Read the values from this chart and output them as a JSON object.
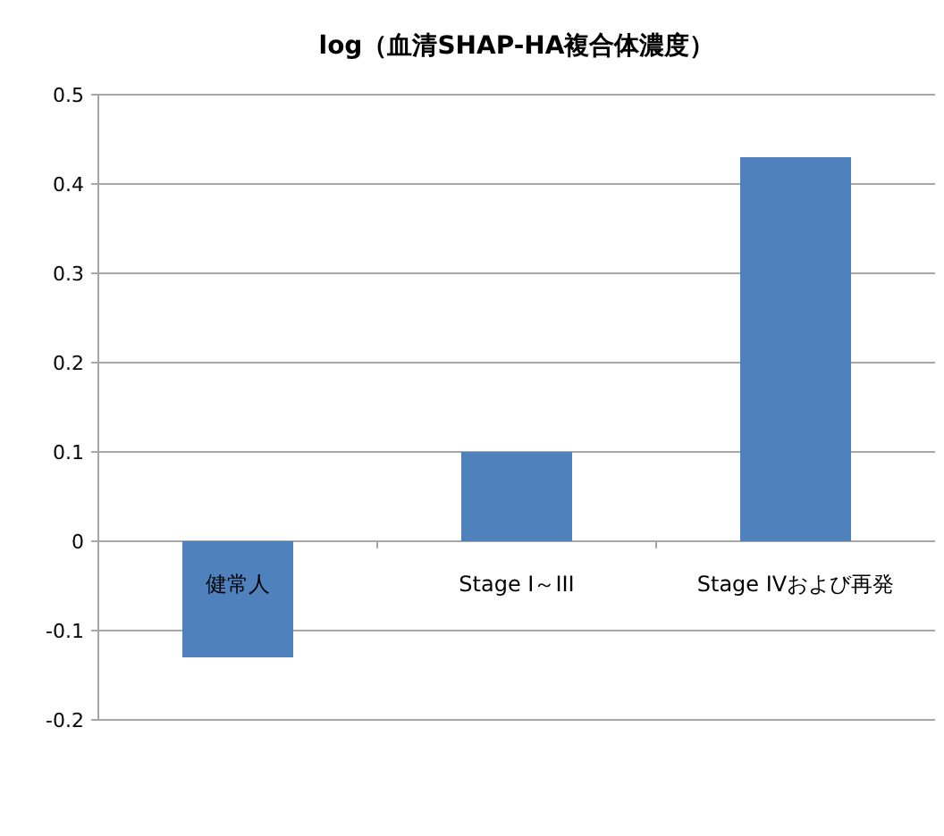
{
  "chart_data": {
    "type": "bar",
    "title": "log（血清SHAP-HA複合体濃度）",
    "categories": [
      "健常人",
      "Stage I～III",
      "Stage IVおよび再発"
    ],
    "values": [
      -0.13,
      0.1,
      0.43
    ],
    "color": "#4f81bd",
    "ylim": [
      -0.2,
      0.5
    ],
    "yticks": [
      -0.2,
      -0.1,
      0,
      0.1,
      0.2,
      0.3,
      0.4,
      0.5
    ],
    "grid": "y"
  }
}
